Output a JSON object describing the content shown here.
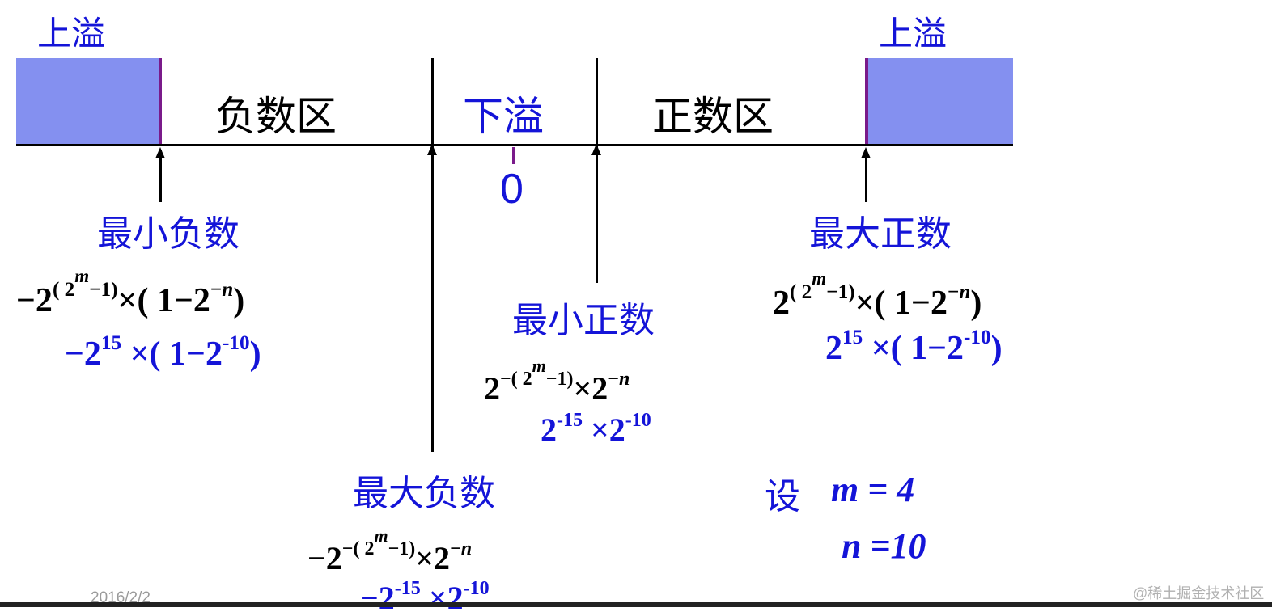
{
  "colors": {
    "blue_text": "#1414d8",
    "overflow_fill": "#8490f0",
    "boundary": "#7a1a8a"
  },
  "regions": {
    "overflow_left": "上溢",
    "overflow_right": "上溢",
    "negative": "负数区",
    "underflow": "下溢",
    "positive": "正数区",
    "zero": "0"
  },
  "min_negative": {
    "label": "最小负数",
    "general": [
      {
        "t": "−2",
        "l": 0
      },
      {
        "t": "( 2",
        "l": 1
      },
      {
        "t": "m",
        "l": 2,
        "i": true
      },
      {
        "t": "−1)",
        "l": 1
      },
      {
        "t": "×( 1−2",
        "l": 0
      },
      {
        "t": "−",
        "l": 1
      },
      {
        "t": "n",
        "l": 1,
        "i": true
      },
      {
        "t": ")",
        "l": 0
      }
    ],
    "example": [
      {
        "t": "−2",
        "l": 0
      },
      {
        "t": "15",
        "l": 1
      },
      {
        "t": " ×( 1−2",
        "l": 0
      },
      {
        "t": "-10",
        "l": 1
      },
      {
        "t": ")",
        "l": 0
      }
    ]
  },
  "max_positive": {
    "label": "最大正数",
    "general": [
      {
        "t": "2",
        "l": 0
      },
      {
        "t": "( 2",
        "l": 1
      },
      {
        "t": "m",
        "l": 2,
        "i": true
      },
      {
        "t": "−1)",
        "l": 1
      },
      {
        "t": "×( 1−2",
        "l": 0
      },
      {
        "t": "−",
        "l": 1
      },
      {
        "t": "n",
        "l": 1,
        "i": true
      },
      {
        "t": ")",
        "l": 0
      }
    ],
    "example": [
      {
        "t": "2",
        "l": 0
      },
      {
        "t": "15",
        "l": 1
      },
      {
        "t": " ×( 1−2",
        "l": 0
      },
      {
        "t": "-10",
        "l": 1
      },
      {
        "t": ")",
        "l": 0
      }
    ]
  },
  "min_positive": {
    "label": "最小正数",
    "general": [
      {
        "t": "2",
        "l": 0
      },
      {
        "t": "−( 2",
        "l": 1
      },
      {
        "t": "m",
        "l": 2,
        "i": true
      },
      {
        "t": "−1)",
        "l": 1
      },
      {
        "t": "×2",
        "l": 0
      },
      {
        "t": "−",
        "l": 1
      },
      {
        "t": "n",
        "l": 1,
        "i": true
      }
    ],
    "example": [
      {
        "t": "2",
        "l": 0
      },
      {
        "t": "-15",
        "l": 1
      },
      {
        "t": " ×2",
        "l": 0
      },
      {
        "t": "-10",
        "l": 1
      }
    ]
  },
  "max_negative": {
    "label": "最大负数",
    "general": [
      {
        "t": "−2",
        "l": 0
      },
      {
        "t": "−( 2",
        "l": 1
      },
      {
        "t": "m",
        "l": 2,
        "i": true
      },
      {
        "t": "−1)",
        "l": 1
      },
      {
        "t": "×2",
        "l": 0
      },
      {
        "t": "−",
        "l": 1
      },
      {
        "t": "n",
        "l": 1,
        "i": true
      }
    ],
    "example": [
      {
        "t": "−2",
        "l": 0
      },
      {
        "t": "-15",
        "l": 1
      },
      {
        "t": " ×2",
        "l": 0
      },
      {
        "t": "-10",
        "l": 1
      }
    ]
  },
  "assumption": {
    "prefix": "设",
    "m_line": "m = 4",
    "n_line": "n =10"
  },
  "footer": {
    "date": "2016/2/2",
    "watermark": "@稀土掘金技术社区"
  }
}
